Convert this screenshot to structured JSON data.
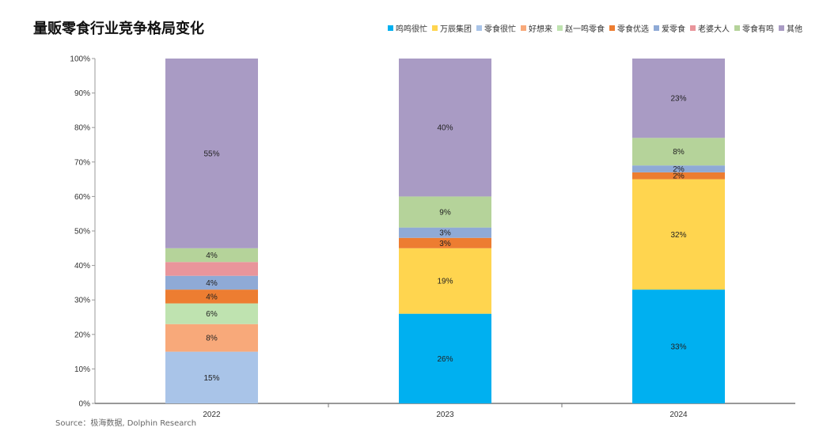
{
  "title": "量贩零食行业竞争格局变化",
  "source": "Source：极海数据, Dolphin Research",
  "chart_data": {
    "type": "bar",
    "stacked": true,
    "percent": true,
    "title": "量贩零食行业竞争格局变化",
    "categories": [
      "2022",
      "2023",
      "2024"
    ],
    "ylim": [
      0,
      100
    ],
    "yticks": [
      "0%",
      "10%",
      "20%",
      "30%",
      "40%",
      "50%",
      "60%",
      "70%",
      "80%",
      "90%",
      "100%"
    ],
    "legend_position": "top-right",
    "series": [
      {
        "name": "鸣鸣很忙",
        "color": "#00b0f0",
        "values": [
          0,
          26,
          33
        ]
      },
      {
        "name": "万辰集团",
        "color": "#ffd54f",
        "values": [
          0,
          19,
          32
        ]
      },
      {
        "name": "零食很忙",
        "color": "#a9c4e8",
        "values": [
          15,
          0,
          0
        ]
      },
      {
        "name": "好想来",
        "color": "#f8a97a",
        "values": [
          8,
          0,
          0
        ]
      },
      {
        "name": "赵一鸣零食",
        "color": "#bfe3b0",
        "values": [
          6,
          0,
          0
        ]
      },
      {
        "name": "零食优选",
        "color": "#ed7d31",
        "values": [
          4,
          3,
          2
        ]
      },
      {
        "name": "爱零食",
        "color": "#8faad6",
        "values": [
          4,
          3,
          2
        ]
      },
      {
        "name": "老婆大人",
        "color": "#e9959b",
        "values": [
          4,
          0,
          0
        ]
      },
      {
        "name": "零食有鸣",
        "color": "#b5d39a",
        "values": [
          4,
          9,
          8
        ]
      },
      {
        "name": "其他",
        "color": "#a99bc4",
        "values": [
          55,
          40,
          23
        ]
      }
    ],
    "hidden_labels": [
      [
        "老婆大人",
        "2022"
      ]
    ]
  }
}
